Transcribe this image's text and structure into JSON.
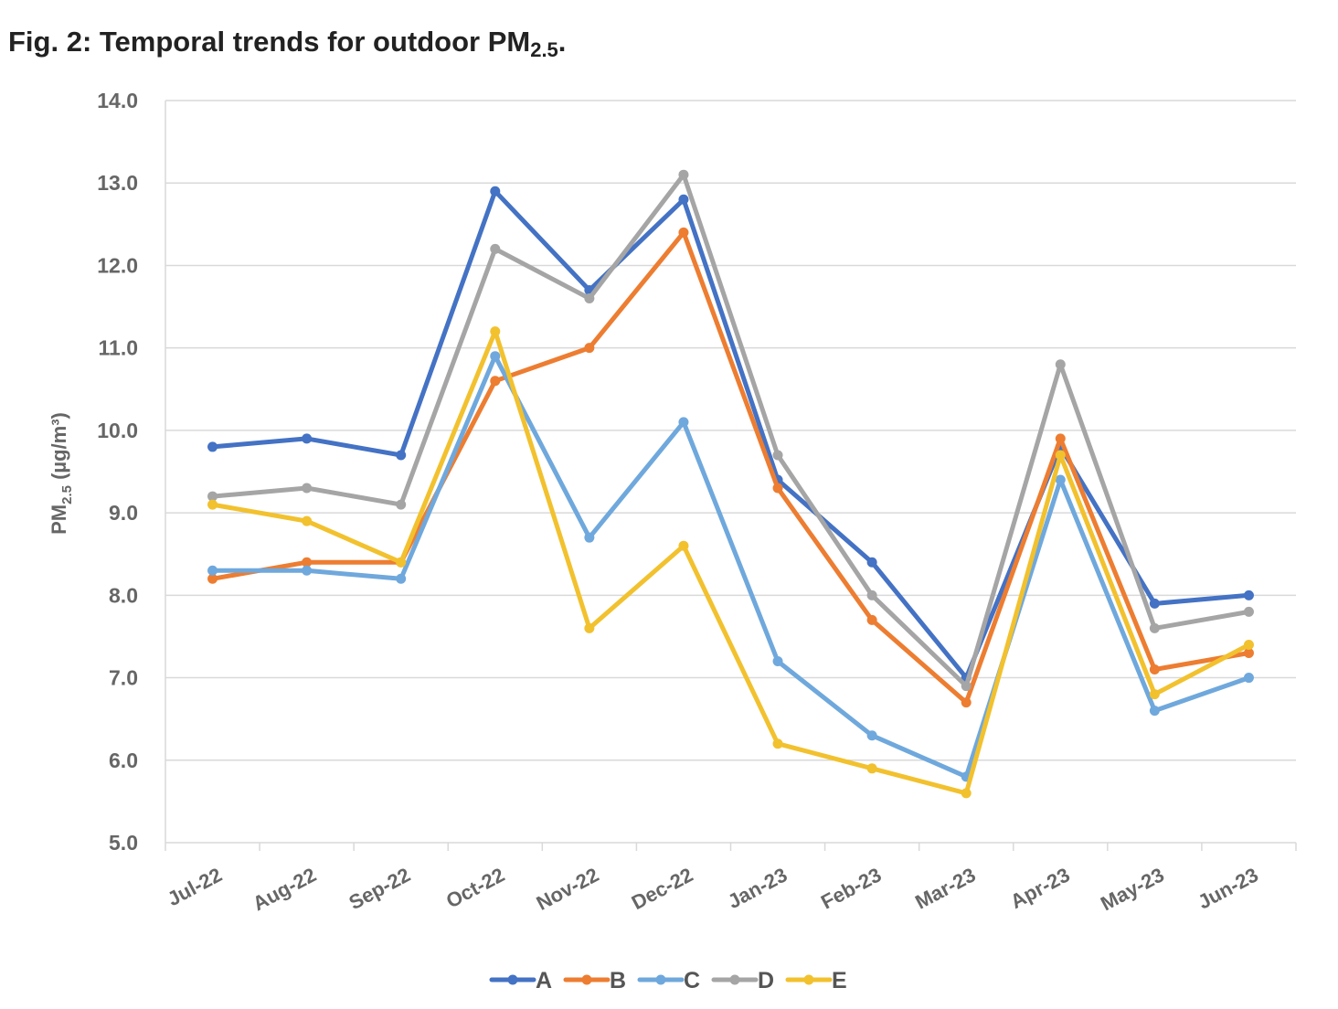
{
  "figure": {
    "title_main": "Fig. 2: Temporal trends for outdoor PM",
    "title_sub": "2.5",
    "title_end": "."
  },
  "chart_data": {
    "type": "line",
    "ylabel_main": "PM",
    "ylabel_sub": "2.5",
    "ylabel_unit": " (µg/m³)",
    "ylim": [
      5.0,
      14.0
    ],
    "yticks": [
      "5.0",
      "6.0",
      "7.0",
      "8.0",
      "9.0",
      "10.0",
      "11.0",
      "12.0",
      "13.0",
      "14.0"
    ],
    "grid": true,
    "legend_position": "bottom",
    "categories": [
      "Jul-22",
      "Aug-22",
      "Sep-22",
      "Oct-22",
      "Nov-22",
      "Dec-22",
      "Jan-23",
      "Feb-23",
      "Mar-23",
      "Apr-23",
      "May-23",
      "Jun-23"
    ],
    "series": [
      {
        "name": "A",
        "color": "#4472c4",
        "values": [
          9.8,
          9.9,
          9.7,
          12.9,
          11.7,
          12.8,
          9.4,
          8.4,
          7.0,
          9.8,
          7.9,
          8.0
        ]
      },
      {
        "name": "B",
        "color": "#ed7d31",
        "values": [
          8.2,
          8.4,
          8.4,
          10.6,
          11.0,
          12.4,
          9.3,
          7.7,
          6.7,
          9.9,
          7.1,
          7.3
        ]
      },
      {
        "name": "C",
        "color": "#6fa8dc",
        "values": [
          8.3,
          8.3,
          8.2,
          10.9,
          8.7,
          10.1,
          7.2,
          6.3,
          5.8,
          9.4,
          6.6,
          7.0
        ]
      },
      {
        "name": "D",
        "color": "#a5a5a5",
        "values": [
          9.2,
          9.3,
          9.1,
          12.2,
          11.6,
          13.1,
          9.7,
          8.0,
          6.9,
          10.8,
          7.6,
          7.8
        ]
      },
      {
        "name": "E",
        "color": "#f2c12e",
        "values": [
          9.1,
          8.9,
          8.4,
          11.2,
          7.6,
          8.6,
          6.2,
          5.9,
          5.6,
          9.7,
          6.8,
          7.4
        ]
      }
    ]
  }
}
